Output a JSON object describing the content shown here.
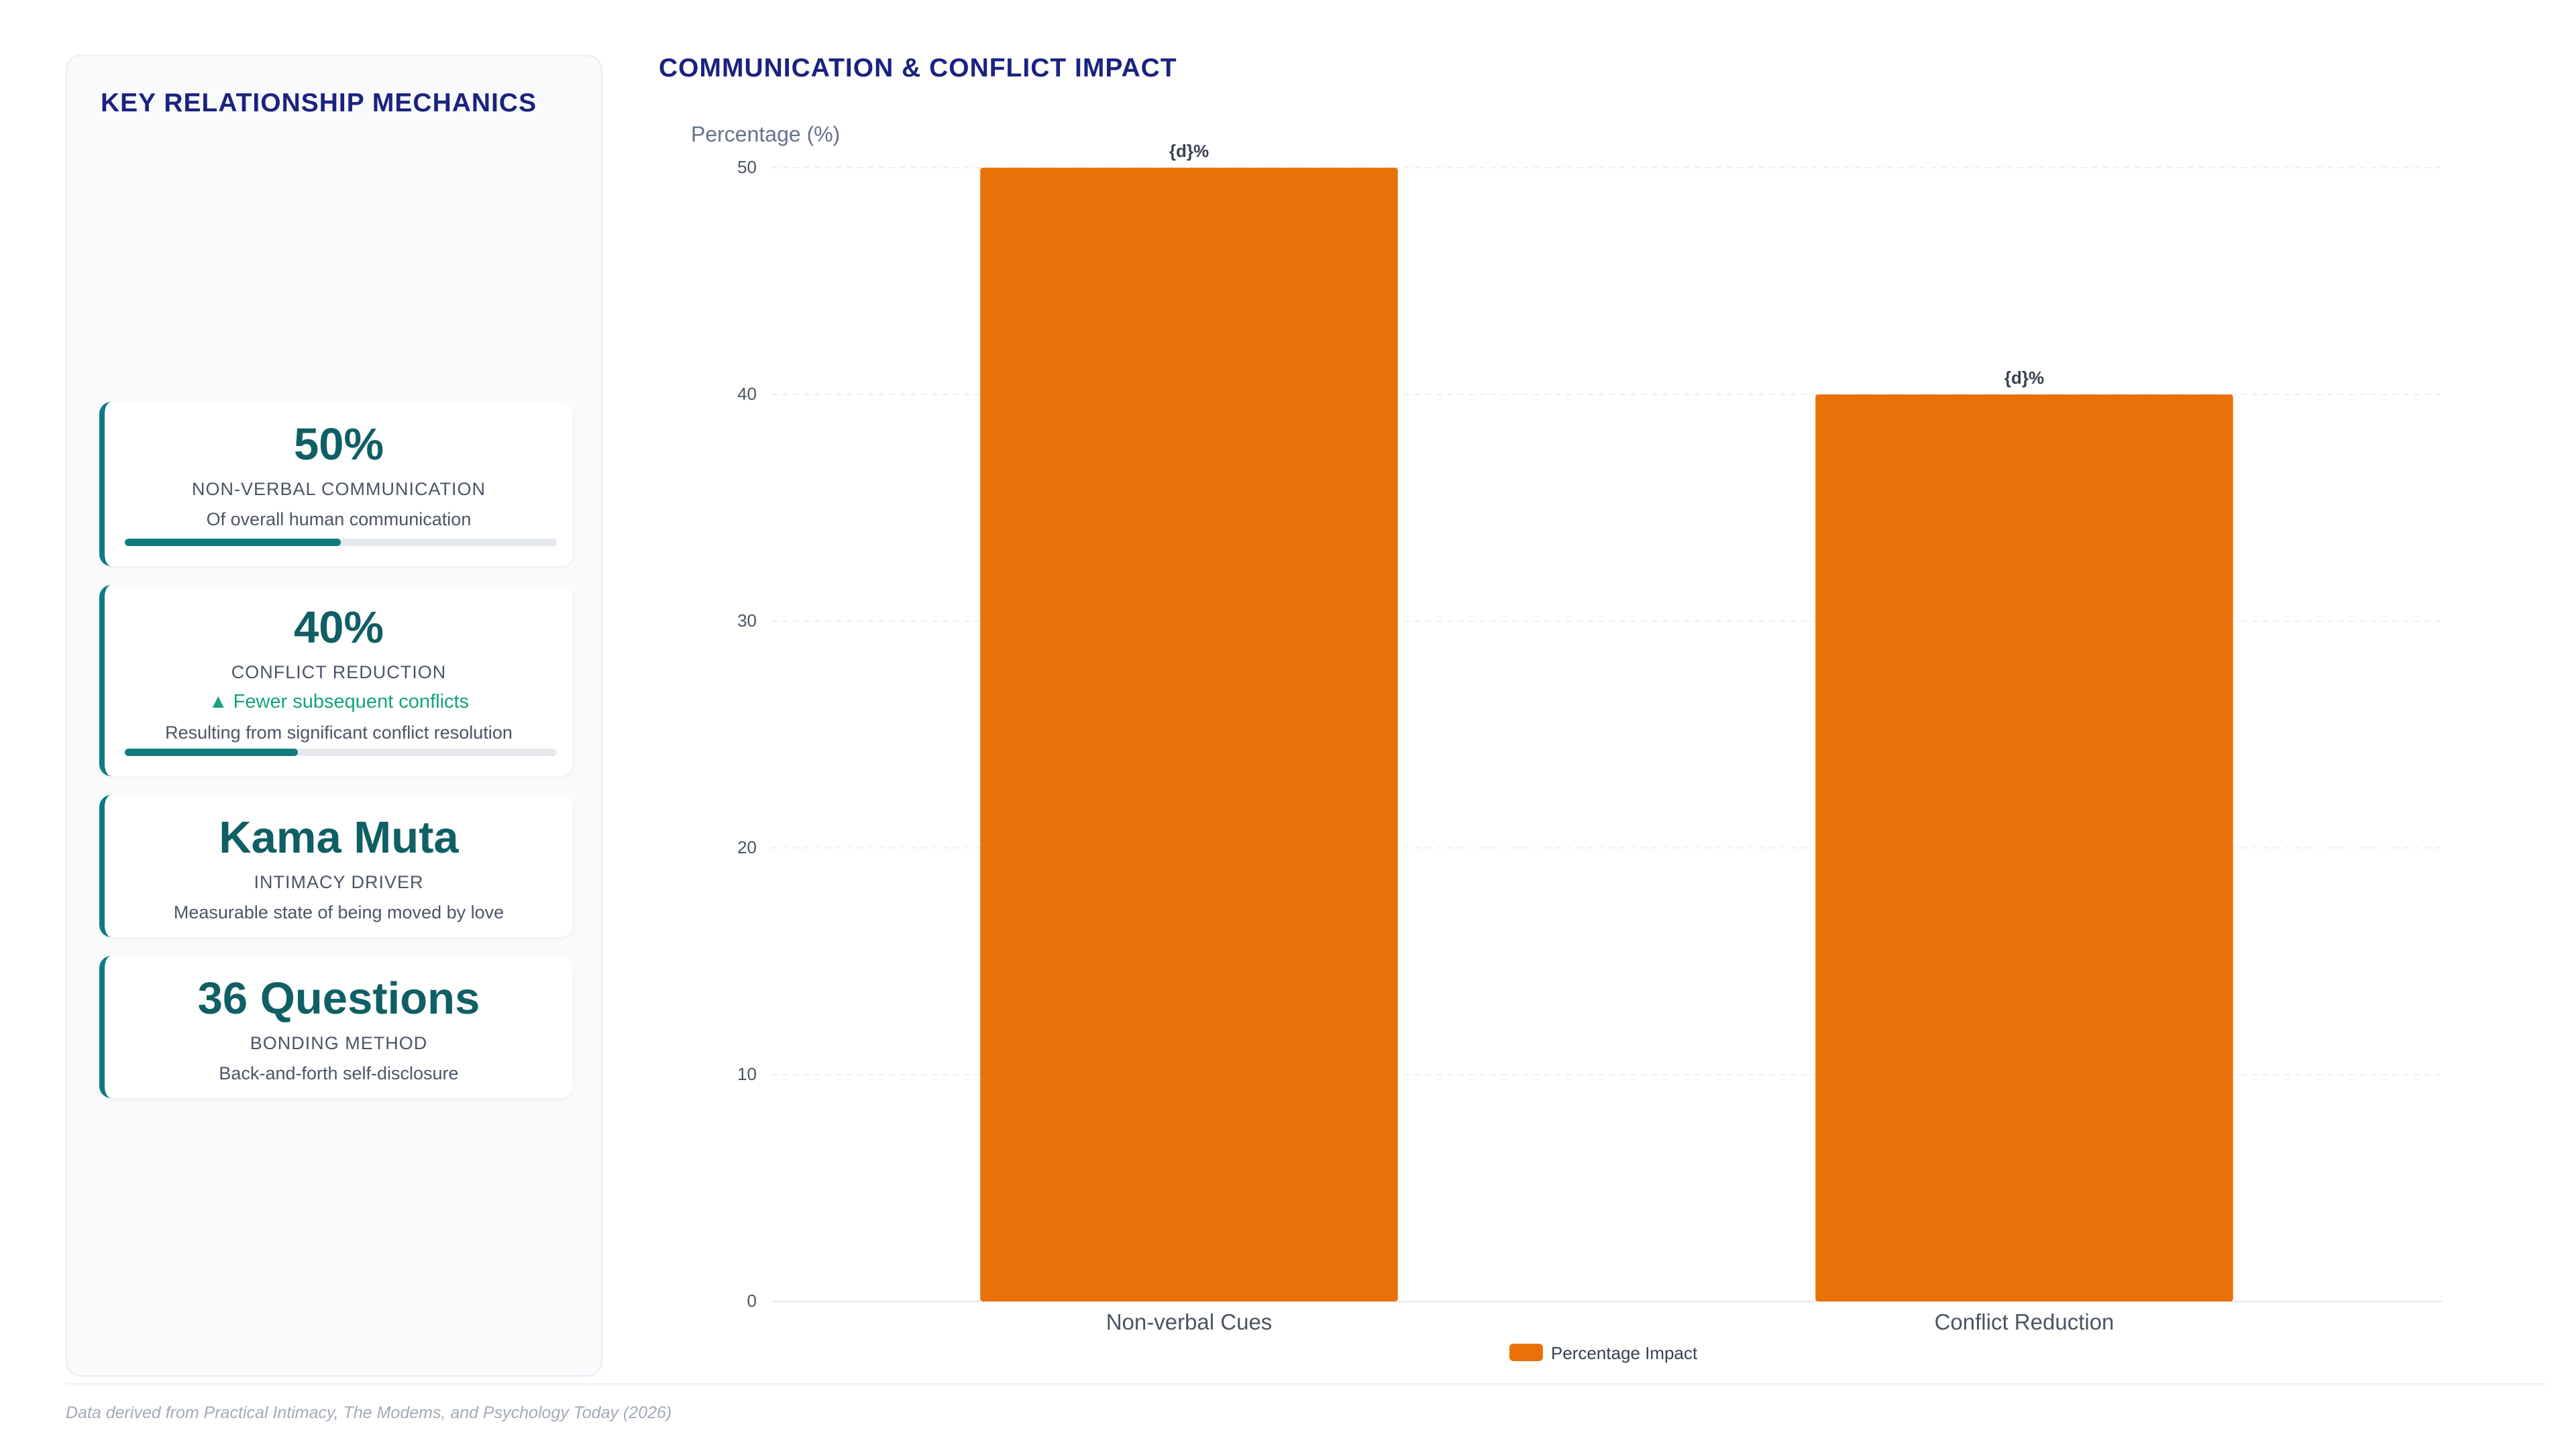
{
  "sidebar": {
    "title": "KEY RELATIONSHIP MECHANICS",
    "cards": [
      {
        "value": "50%",
        "label": "NON-VERBAL COMMUNICATION",
        "description": "Of overall human communication",
        "progress": 0.5
      },
      {
        "value": "40%",
        "label": "CONFLICT REDUCTION",
        "trend": "▲ Fewer subsequent conflicts",
        "description": "Resulting from significant conflict resolution",
        "progress": 0.4
      },
      {
        "value": "Kama Muta",
        "label": "INTIMACY DRIVER",
        "description": "Measurable state of being moved by love"
      },
      {
        "value": "36 Questions",
        "label": "BONDING METHOD",
        "description": "Back-and-forth self-disclosure"
      }
    ]
  },
  "chart_title": "COMMUNICATION & CONFLICT IMPACT",
  "chart_data": {
    "type": "bar",
    "categories": [
      "Non-verbal Cues",
      "Conflict Reduction"
    ],
    "series": [
      {
        "name": "Percentage Impact",
        "values": [
          50,
          40
        ]
      }
    ],
    "data_labels": [
      "{d}%",
      "{d}%"
    ],
    "ylabel": "Percentage (%)",
    "xlabel": "",
    "ylim": [
      0,
      50
    ],
    "yticks": [
      0,
      10,
      20,
      30,
      40,
      50
    ],
    "grid": true,
    "legend_position": "bottom"
  },
  "colors": {
    "bar": "#e8710a",
    "accent": "#0f7b80",
    "title": "#1a237e",
    "trend": "#14a37f"
  },
  "footer": "Data derived from Practical Intimacy, The Modems, and Psychology Today (2026)"
}
